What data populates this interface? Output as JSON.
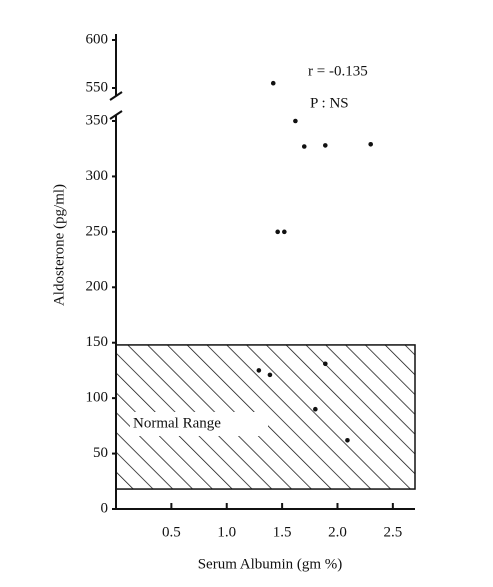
{
  "chart_data": {
    "type": "scatter",
    "x_label": "Serum Albumin (gm %)",
    "y_label": "Aldosterone (pg/ml)",
    "annotations": [
      "r = -0.135",
      "P : NS"
    ],
    "x": [
      1.42,
      1.62,
      1.7,
      1.89,
      2.3,
      1.46,
      1.52,
      1.29,
      1.39,
      1.89,
      1.8,
      2.09
    ],
    "values": [
      555,
      350,
      327,
      328,
      329,
      250,
      250,
      125,
      121,
      131,
      90,
      62
    ],
    "color": "#111111",
    "xlim": [
      0,
      2.7
    ],
    "xticks": [
      0.5,
      {
        "value": 1,
        "label": "1.0"
      },
      1.5,
      {
        "value": 2,
        "label": "2.0"
      },
      2.5
    ],
    "ylim": [
      0,
      600
    ],
    "ybreak": [
      350,
      550
    ],
    "yticks": [
      0,
      50,
      100,
      150,
      200,
      250,
      300,
      350,
      550,
      600
    ],
    "normal_range": {
      "label": "Normal Range",
      "low": 18,
      "high": 148
    }
  }
}
